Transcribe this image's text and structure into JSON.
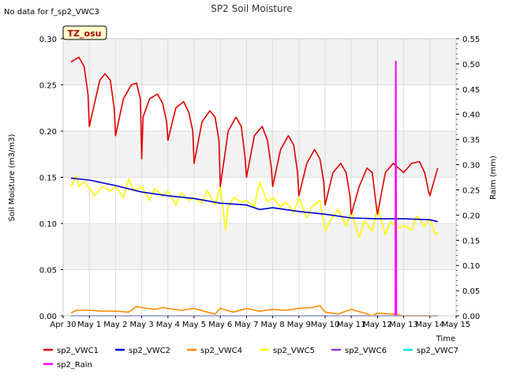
{
  "chart_data": {
    "type": "line",
    "title": "SP2 Soil Moisture",
    "note": "No data for f_sp2_VWC3",
    "badge": "TZ_osu",
    "xlabel": "Time",
    "ylabel": "Soil Moisture (m3/m3)",
    "y2label": "Raim (mm)",
    "xlim": [
      0,
      15
    ],
    "ylim": [
      0,
      0.3
    ],
    "y2lim": [
      0,
      0.55
    ],
    "x_ticks": [
      {
        "v": 0,
        "label": "Apr 30"
      },
      {
        "v": 1,
        "label": "May 1"
      },
      {
        "v": 2,
        "label": "May 2"
      },
      {
        "v": 3,
        "label": "May 3"
      },
      {
        "v": 4,
        "label": "May 4"
      },
      {
        "v": 5,
        "label": "May 5"
      },
      {
        "v": 6,
        "label": "May 6"
      },
      {
        "v": 7,
        "label": "May 7"
      },
      {
        "v": 8,
        "label": "May 8"
      },
      {
        "v": 9,
        "label": "May 9"
      },
      {
        "v": 10,
        "label": "May 10"
      },
      {
        "v": 11,
        "label": "May 11"
      },
      {
        "v": 12,
        "label": "May 12"
      },
      {
        "v": 13,
        "label": "May 13"
      },
      {
        "v": 14,
        "label": "May 14"
      },
      {
        "v": 15,
        "label": "May 15"
      }
    ],
    "y_ticks": [
      "0.00",
      "0.05",
      "0.10",
      "0.15",
      "0.20",
      "0.25",
      "0.30"
    ],
    "y2_ticks": [
      "0.00",
      "0.05",
      "0.10",
      "0.15",
      "0.20",
      "0.25",
      "0.30",
      "0.35",
      "0.40",
      "0.45",
      "0.50",
      "0.55"
    ],
    "series": [
      {
        "name": "sp2_VWC1",
        "color": "#dd0000",
        "axis": "left",
        "x": [
          0.3,
          0.6,
          0.8,
          0.95,
          1.0,
          1.2,
          1.4,
          1.6,
          1.8,
          1.95,
          2.0,
          2.3,
          2.6,
          2.8,
          2.95,
          3.0,
          3.05,
          3.3,
          3.6,
          3.8,
          3.95,
          4.0,
          4.3,
          4.6,
          4.8,
          4.95,
          5.0,
          5.3,
          5.6,
          5.8,
          5.95,
          6.0,
          6.3,
          6.6,
          6.8,
          6.95,
          7.0,
          7.3,
          7.6,
          7.8,
          7.95,
          8.0,
          8.3,
          8.6,
          8.8,
          8.95,
          9.0,
          9.3,
          9.6,
          9.8,
          9.95,
          10.0,
          10.3,
          10.6,
          10.8,
          10.95,
          11.0,
          11.3,
          11.6,
          11.8,
          11.95,
          12.0,
          12.3,
          12.6,
          12.8,
          13.0,
          13.3,
          13.6,
          13.8,
          13.95,
          14.0,
          14.2,
          14.3
        ],
        "y": [
          0.275,
          0.28,
          0.27,
          0.24,
          0.205,
          0.23,
          0.255,
          0.262,
          0.255,
          0.225,
          0.195,
          0.235,
          0.25,
          0.252,
          0.235,
          0.17,
          0.215,
          0.235,
          0.24,
          0.23,
          0.21,
          0.19,
          0.225,
          0.232,
          0.22,
          0.2,
          0.165,
          0.21,
          0.222,
          0.215,
          0.19,
          0.14,
          0.2,
          0.215,
          0.205,
          0.17,
          0.15,
          0.195,
          0.205,
          0.19,
          0.16,
          0.14,
          0.18,
          0.195,
          0.185,
          0.155,
          0.13,
          0.165,
          0.18,
          0.17,
          0.145,
          0.12,
          0.155,
          0.165,
          0.155,
          0.13,
          0.11,
          0.14,
          0.16,
          0.155,
          0.12,
          0.11,
          0.155,
          0.165,
          0.16,
          0.155,
          0.165,
          0.167,
          0.155,
          0.135,
          0.13,
          0.15,
          0.16
        ]
      },
      {
        "name": "sp2_VWC2",
        "color": "#0000cc",
        "axis": "left",
        "x": [
          0.3,
          1.0,
          2.0,
          3.0,
          4.0,
          5.0,
          6.0,
          7.0,
          7.5,
          8.0,
          9.0,
          10.0,
          11.0,
          12.0,
          13.0,
          14.0,
          14.3
        ],
        "y": [
          0.149,
          0.147,
          0.141,
          0.134,
          0.13,
          0.127,
          0.122,
          0.12,
          0.115,
          0.117,
          0.113,
          0.11,
          0.106,
          0.105,
          0.105,
          0.104,
          0.102
        ]
      },
      {
        "name": "sp2_VWC4",
        "color": "#ff8c00",
        "axis": "left",
        "x": [
          0.3,
          0.5,
          1.0,
          1.5,
          2.0,
          2.5,
          2.8,
          3.0,
          3.5,
          3.8,
          4.0,
          4.5,
          5.0,
          5.5,
          5.8,
          6.0,
          6.5,
          7.0,
          7.5,
          8.0,
          8.5,
          9.0,
          9.5,
          9.8,
          10.0,
          10.5,
          11.0,
          11.5,
          11.8,
          12.0,
          12.5,
          12.8,
          13.0,
          13.5,
          14.0,
          14.3
        ],
        "y": [
          0.003,
          0.006,
          0.006,
          0.005,
          0.005,
          0.004,
          0.01,
          0.009,
          0.007,
          0.009,
          0.008,
          0.006,
          0.008,
          0.004,
          0.002,
          0.008,
          0.004,
          0.008,
          0.005,
          0.007,
          0.006,
          0.008,
          0.009,
          0.011,
          0.004,
          0.002,
          0.007,
          0.003,
          0.0,
          0.003,
          0.002,
          0.001,
          0.0,
          0.0,
          0.0,
          0.0
        ]
      },
      {
        "name": "sp2_VWC5",
        "color": "#ffff00",
        "axis": "left",
        "x": [
          0.3,
          0.5,
          0.6,
          0.8,
          1.0,
          1.2,
          1.5,
          1.8,
          2.0,
          2.3,
          2.5,
          2.7,
          3.0,
          3.3,
          3.5,
          3.8,
          4.0,
          4.3,
          4.5,
          4.8,
          5.0,
          5.3,
          5.5,
          5.8,
          6.0,
          6.2,
          6.3,
          6.5,
          6.8,
          7.0,
          7.3,
          7.5,
          7.8,
          8.0,
          8.3,
          8.5,
          8.8,
          9.0,
          9.3,
          9.5,
          9.8,
          10.0,
          10.2,
          10.5,
          10.8,
          11.0,
          11.3,
          11.5,
          11.8,
          12.0,
          12.3,
          12.5,
          12.8,
          13.0,
          13.3,
          13.5,
          13.8,
          14.0,
          14.2,
          14.3
        ],
        "y": [
          0.14,
          0.152,
          0.14,
          0.145,
          0.138,
          0.13,
          0.14,
          0.135,
          0.14,
          0.128,
          0.148,
          0.135,
          0.14,
          0.125,
          0.138,
          0.13,
          0.135,
          0.12,
          0.133,
          0.125,
          0.128,
          0.122,
          0.136,
          0.12,
          0.14,
          0.093,
          0.118,
          0.128,
          0.123,
          0.125,
          0.118,
          0.145,
          0.123,
          0.128,
          0.118,
          0.123,
          0.112,
          0.128,
          0.106,
          0.118,
          0.125,
          0.092,
          0.103,
          0.115,
          0.097,
          0.113,
          0.085,
          0.103,
          0.092,
          0.118,
          0.088,
          0.102,
          0.095,
          0.098,
          0.093,
          0.108,
          0.097,
          0.105,
          0.088,
          0.09
        ]
      },
      {
        "name": "sp2_VWC6",
        "color": "#9932cc",
        "axis": "left",
        "x": [
          0.3,
          14.3
        ],
        "y": [
          0.0,
          0.0
        ]
      },
      {
        "name": "sp2_VWC7",
        "color": "#00e5e5",
        "axis": "left",
        "x": [
          0.3,
          14.3
        ],
        "y": [
          0.0,
          0.0
        ]
      },
      {
        "name": "sp2_Rain",
        "color": "#ff00ff",
        "axis": "right",
        "x": [
          12.68,
          12.7,
          12.72
        ],
        "y": [
          0.0,
          0.505,
          0.0
        ]
      }
    ],
    "legend_position": "bottom",
    "grid": true
  }
}
